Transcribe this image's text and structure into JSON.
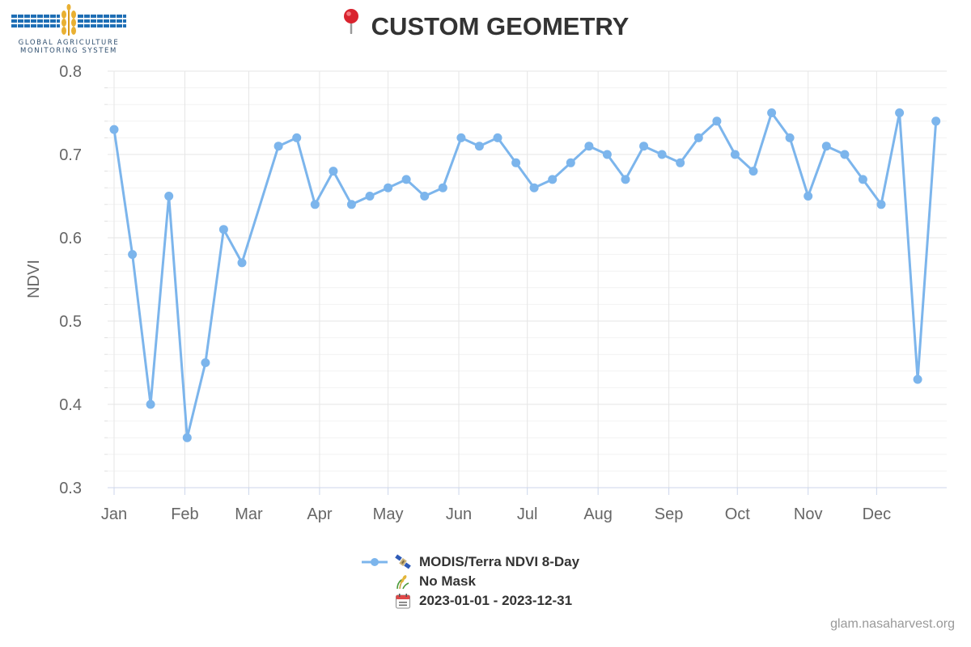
{
  "logo": {
    "line1": "GLOBAL AGRICULTURE",
    "line2": "MONITORING SYSTEM"
  },
  "header": {
    "title": "CUSTOM GEOMETRY",
    "title_icon": "pin-icon"
  },
  "legend": {
    "series_label": "MODIS/Terra NDVI 8-Day",
    "series_icon": "satellite-icon",
    "mask_label": "No Mask",
    "mask_icon": "crop-icon",
    "date_label": "2023-01-01 - 2023-12-31",
    "date_icon": "calendar-icon"
  },
  "footer": {
    "credit": "glam.nasaharvest.org"
  },
  "colors": {
    "series": "#7cb5ec",
    "grid": "#e6e6e6",
    "axis": "#ccd6eb",
    "text": "#333333",
    "muted": "#666666"
  },
  "chart_data": {
    "type": "line",
    "title": "CUSTOM GEOMETRY",
    "xlabel": "",
    "ylabel": "NDVI",
    "ylim": [
      0.3,
      0.8
    ],
    "yticks": [
      0.3,
      0.4,
      0.5,
      0.6,
      0.7,
      0.8
    ],
    "grid": true,
    "legend_position": "bottom-center",
    "x_month_labels": [
      "Jan",
      "Feb",
      "Mar",
      "Apr",
      "May",
      "Jun",
      "Jul",
      "Aug",
      "Sep",
      "Oct",
      "Nov",
      "Dec"
    ],
    "series": [
      {
        "name": "MODIS/Terra NDVI 8-Day",
        "x": [
          "2023-01-01",
          "2023-01-09",
          "2023-01-17",
          "2023-01-25",
          "2023-02-02",
          "2023-02-10",
          "2023-02-18",
          "2023-02-26",
          "2023-03-14",
          "2023-03-22",
          "2023-03-30",
          "2023-04-07",
          "2023-04-15",
          "2023-04-23",
          "2023-05-01",
          "2023-05-09",
          "2023-05-17",
          "2023-05-25",
          "2023-06-02",
          "2023-06-10",
          "2023-06-18",
          "2023-06-26",
          "2023-07-04",
          "2023-07-12",
          "2023-07-20",
          "2023-07-28",
          "2023-08-05",
          "2023-08-13",
          "2023-08-21",
          "2023-08-29",
          "2023-09-06",
          "2023-09-14",
          "2023-09-22",
          "2023-09-30",
          "2023-10-08",
          "2023-10-16",
          "2023-10-24",
          "2023-11-01",
          "2023-11-09",
          "2023-11-17",
          "2023-11-25",
          "2023-12-03",
          "2023-12-11",
          "2023-12-19",
          "2023-12-27"
        ],
        "values": [
          0.73,
          0.58,
          0.4,
          0.65,
          0.36,
          0.45,
          0.61,
          0.57,
          0.71,
          0.72,
          0.64,
          0.68,
          0.64,
          0.65,
          0.66,
          0.67,
          0.65,
          0.66,
          0.72,
          0.71,
          0.72,
          0.69,
          0.66,
          0.67,
          0.69,
          0.71,
          0.7,
          0.67,
          0.71,
          0.7,
          0.69,
          0.72,
          0.74,
          0.7,
          0.68,
          0.75,
          0.72,
          0.65,
          0.71,
          0.7,
          0.67,
          0.64,
          0.75,
          0.43,
          0.74
        ]
      }
    ]
  }
}
